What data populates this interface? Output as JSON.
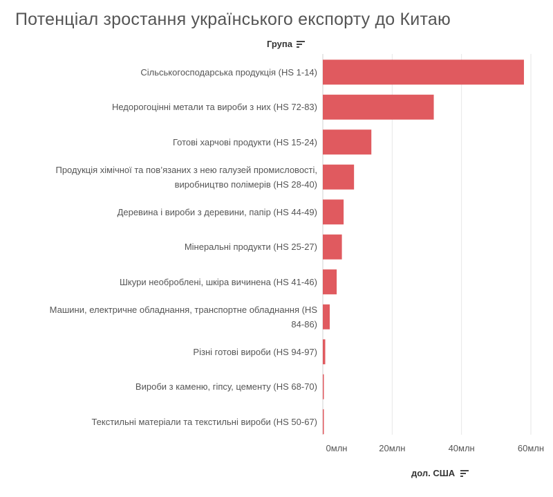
{
  "title": "Потенціал зростання українського експорту до Китаю",
  "group_header": {
    "label": "Група",
    "sort_icon": "sort-descending-icon"
  },
  "x_axis": {
    "title": "дол. США",
    "sort_icon": "sort-descending-icon"
  },
  "colors": {
    "bar": "#e05a5f",
    "grid": "#e6e6e6",
    "text": "#555555"
  },
  "chart_data": {
    "type": "bar",
    "orientation": "horizontal",
    "title": "Потенціал зростання українського експорту до Китаю",
    "ylabel": "Група",
    "xlabel": "дол. США",
    "categories": [
      "Сільськогосподарська продукція (HS 1-14)",
      "Недорогоцінні метали та вироби з них (HS 72-83)",
      "Готові харчові продукти (HS 15-24)",
      "Продукція хімічної та пов’язаних з нею галузей промисловості, виробництво полімерів (HS 28-40)",
      "Деревина і вироби з деревини, папір (HS 44-49)",
      "Мінеральні продукти (HS 25-27)",
      "Шкури необроблені, шкіра вичинена (HS 41-46)",
      "Машини, електричне обладнання, транспортне обладнання (HS 84-86)",
      "Різні готові вироби (HS 94-97)",
      "Вироби з каменю, гіпсу, цементу (HS 68-70)",
      "Текстильні матеріали та текстильні вироби (HS 50-67)"
    ],
    "label_lines": [
      [
        "Сільськогосподарська продукція (HS 1-14)"
      ],
      [
        "Недорогоцінні метали та вироби з них (HS 72-83)"
      ],
      [
        "Готові харчові продукти (HS 15-24)"
      ],
      [
        "Продукція хімічної та пов’язаних з нею галузей промисловості,",
        "виробництво полімерів (HS 28-40)"
      ],
      [
        "Деревина і вироби з деревини, папір (HS 44-49)"
      ],
      [
        "Мінеральні продукти (HS 25-27)"
      ],
      [
        "Шкури необроблені, шкіра вичинена (HS 41-46)"
      ],
      [
        "Машини, електричне обладнання, транспортне обладнання (HS",
        "84-86)"
      ],
      [
        "Різні готові вироби (HS 94-97)"
      ],
      [
        "Вироби з каменю, гіпсу, цементу (HS 68-70)"
      ],
      [
        "Текстильні матеріали та текстильні вироби (HS 50-67)"
      ]
    ],
    "values": [
      58,
      32,
      14,
      9,
      6,
      5.5,
      4,
      2,
      0.7,
      0.2,
      0.2
    ],
    "unit": "млн",
    "xlim": [
      0,
      60
    ],
    "xticks": [
      0,
      20,
      40,
      60
    ],
    "xtick_labels": [
      "0млн",
      "20млн",
      "40млн",
      "60млн"
    ],
    "grid": true
  }
}
